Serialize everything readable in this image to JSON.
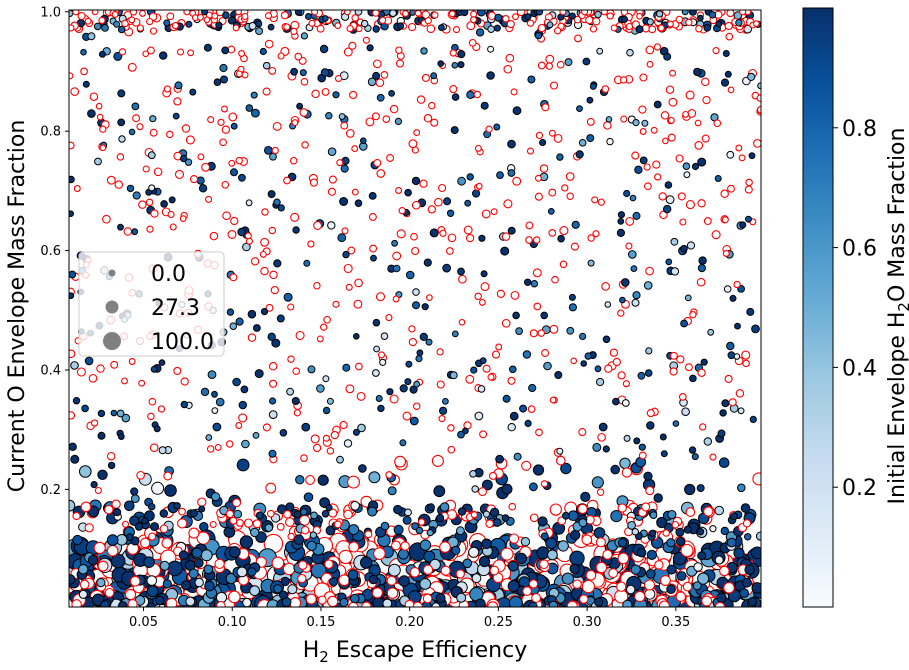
{
  "chart_data": {
    "type": "scatter",
    "title": "",
    "xlabel_main": "H",
    "xlabel_sub": "2",
    "xlabel_rest": " Escape Efficiency",
    "ylabel": "Current O Envelope Mass Fraction",
    "colorbar_label_pre": "Initial Envelope H",
    "colorbar_label_sub": "2",
    "colorbar_label_post": "O Mass Fraction",
    "xlim": [
      0.008,
      0.398
    ],
    "ylim": [
      0.003,
      1.003
    ],
    "x_ticks": [
      0.05,
      0.1,
      0.15,
      0.2,
      0.25,
      0.3,
      0.35
    ],
    "x_tick_labels": [
      "0.05",
      "0.10",
      "0.15",
      "0.20",
      "0.25",
      "0.30",
      "0.35"
    ],
    "y_ticks": [
      0.2,
      0.4,
      0.6,
      0.8,
      1.0
    ],
    "y_tick_labels": [
      "0.2",
      "0.4",
      "0.6",
      "0.8",
      "1.0"
    ],
    "colorbar": {
      "range": [
        0,
        1
      ],
      "ticks": [
        0.2,
        0.4,
        0.6,
        0.8
      ],
      "tick_labels": [
        "0.2",
        "0.4",
        "0.6",
        "0.8"
      ],
      "colormap": "Blues",
      "stops": [
        "#f7fbff",
        "#deebf7",
        "#c6dbef",
        "#9ecae1",
        "#6baed6",
        "#4292c6",
        "#2171b5",
        "#08519c",
        "#08306b"
      ]
    },
    "size_legend": {
      "title": "",
      "entries": [
        {
          "label": "0.0",
          "value": 0.0
        },
        {
          "label": "27.3",
          "value": 27.3
        },
        {
          "label": "100.0",
          "value": 100.0
        }
      ],
      "placement": "center-left"
    },
    "marker_edge_colors": {
      "filled": "#000000",
      "hollow": "#ff0000"
    },
    "series_description": "Dense scatter of ~3000 simulated planets; hollow red-edged circles and filled circles coloured by initial envelope H2O mass fraction; marker size scales with size variable",
    "sample_points": [
      {
        "x": 0.05,
        "y": 0.02,
        "c": 0.95,
        "size": 100
      },
      {
        "x": 0.1,
        "y": 0.05,
        "c": 0.3,
        "size": 80
      },
      {
        "x": 0.15,
        "y": 0.1,
        "c": 0.9,
        "size": 60
      },
      {
        "x": 0.2,
        "y": 0.15,
        "c": 0.7,
        "size": 50
      },
      {
        "x": 0.25,
        "y": 0.3,
        "c": 0.95,
        "size": 30
      },
      {
        "x": 0.3,
        "y": 0.45,
        "c": 0.9,
        "size": 27.3
      },
      {
        "x": 0.35,
        "y": 0.7,
        "c": 0.6,
        "size": 20
      },
      {
        "x": 0.38,
        "y": 0.99,
        "c": 0.5,
        "size": 10
      }
    ],
    "grid": false,
    "legend_position": "center-left"
  }
}
